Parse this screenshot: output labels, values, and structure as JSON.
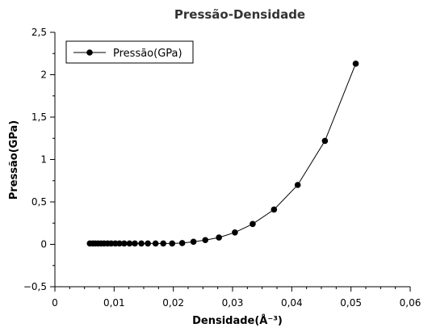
{
  "chart_data": {
    "type": "line",
    "title": "Pressão-Densidade",
    "xlabel": "Densidade(Å⁻³)",
    "ylabel": "Pressão(GPa)",
    "xlim": [
      0,
      0.06
    ],
    "ylim": [
      -0.5,
      2.5
    ],
    "x_ticks": [
      0,
      0.01,
      0.02,
      0.03,
      0.04,
      0.05,
      0.06
    ],
    "x_tick_labels": [
      "0",
      "0,01",
      "0,02",
      "0,03",
      "0,04",
      "0,05",
      "0,06"
    ],
    "y_ticks": [
      -0.5,
      0,
      0.5,
      1,
      1.5,
      2,
      2.5
    ],
    "y_tick_labels": [
      "−0,5",
      "0",
      "0,5",
      "1",
      "1,5",
      "2",
      "2,5"
    ],
    "grid": false,
    "legend_position": "top-left",
    "series": [
      {
        "name": "Pressão(GPa)",
        "color": "#000000",
        "marker": "circle",
        "x": [
          0.0059,
          0.0064,
          0.0068,
          0.0073,
          0.0078,
          0.0083,
          0.0089,
          0.0095,
          0.0102,
          0.0109,
          0.0117,
          0.0126,
          0.0135,
          0.0146,
          0.0157,
          0.017,
          0.0183,
          0.0198,
          0.0215,
          0.0234,
          0.0254,
          0.0277,
          0.0304,
          0.0334,
          0.037,
          0.041,
          0.0456,
          0.0508
        ],
        "y": [
          0.01,
          0.01,
          0.01,
          0.01,
          0.01,
          0.01,
          0.01,
          0.01,
          0.01,
          0.01,
          0.01,
          0.01,
          0.01,
          0.01,
          0.01,
          0.01,
          0.01,
          0.01,
          0.015,
          0.03,
          0.05,
          0.08,
          0.14,
          0.24,
          0.41,
          0.7,
          1.22,
          2.13
        ]
      }
    ]
  }
}
